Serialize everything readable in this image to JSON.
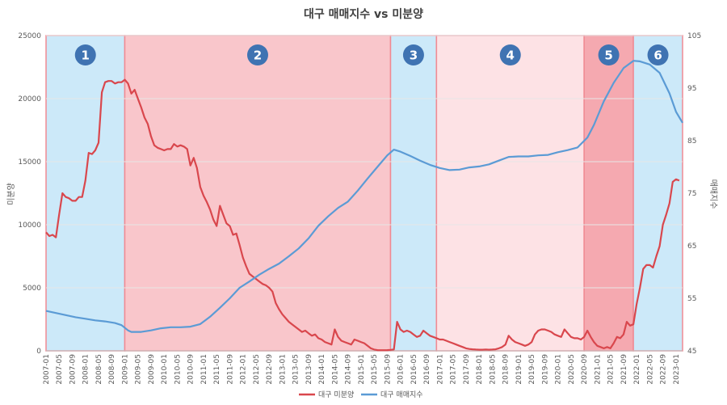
{
  "chart_data": {
    "type": "line",
    "title": "대구 매매지수 vs 미분양",
    "ylabel_left": "미분양",
    "ylabel_right": "매매지수",
    "ylim_left": [
      0,
      25000
    ],
    "ylim_right": [
      45,
      105
    ],
    "yticks_left": [
      "0",
      "5000",
      "10000",
      "15000",
      "20000",
      "25000"
    ],
    "yticks_right": [
      "45",
      "55",
      "65",
      "75",
      "85",
      "95",
      "105"
    ],
    "xlim": [
      "2007-01",
      "2023-03"
    ],
    "xtick_labels": [
      "2007-01",
      "2007-05",
      "2007-09",
      "2008-01",
      "2008-05",
      "2008-09",
      "2009-01",
      "2009-05",
      "2009-09",
      "2010-01",
      "2010-05",
      "2010-09",
      "2011-01",
      "2011-05",
      "2011-09",
      "2012-01",
      "2012-05",
      "2012-09",
      "2013-01",
      "2013-05",
      "2013-09",
      "2014-01",
      "2014-05",
      "2014-09",
      "2015-01",
      "2015-05",
      "2015-09",
      "2016-01",
      "2016-05",
      "2016-09",
      "2017-01",
      "2017-05",
      "2017-09",
      "2018-01",
      "2018-05",
      "2018-09",
      "2019-01",
      "2019-05",
      "2019-09",
      "2020-01",
      "2020-05",
      "2020-09",
      "2021-01",
      "2021-05",
      "2021-09",
      "2022-01",
      "2022-05",
      "2022-09",
      "2023-01"
    ],
    "grid": true,
    "legend": "bottom",
    "phases": [
      {
        "label": "1",
        "start": "2007-01",
        "end": "2009-01",
        "color": "#cce9f9"
      },
      {
        "label": "2",
        "start": "2009-01",
        "end": "2015-10",
        "color": "#f9c6cb"
      },
      {
        "label": "3",
        "start": "2015-10",
        "end": "2016-12",
        "color": "#cce9f9"
      },
      {
        "label": "4",
        "start": "2016-12",
        "end": "2020-09",
        "color": "#fde2e5"
      },
      {
        "label": "5",
        "start": "2020-09",
        "end": "2021-12",
        "color": "#f5a9b0"
      },
      {
        "label": "6",
        "start": "2021-12",
        "end": "2023-03",
        "color": "#cce9f9"
      }
    ],
    "series": [
      {
        "name": "대구 미분양",
        "axis": "left",
        "color": "#d9474d",
        "points": [
          [
            "2007-01",
            9400
          ],
          [
            "2007-02",
            9100
          ],
          [
            "2007-03",
            9200
          ],
          [
            "2007-04",
            9000
          ],
          [
            "2007-05",
            10800
          ],
          [
            "2007-06",
            12500
          ],
          [
            "2007-07",
            12200
          ],
          [
            "2007-08",
            12100
          ],
          [
            "2007-09",
            11900
          ],
          [
            "2007-10",
            11900
          ],
          [
            "2007-11",
            12200
          ],
          [
            "2007-12",
            12200
          ],
          [
            "2008-01",
            13500
          ],
          [
            "2008-02",
            15700
          ],
          [
            "2008-03",
            15600
          ],
          [
            "2008-04",
            15900
          ],
          [
            "2008-05",
            16500
          ],
          [
            "2008-06",
            20500
          ],
          [
            "2008-07",
            21300
          ],
          [
            "2008-08",
            21400
          ],
          [
            "2008-09",
            21400
          ],
          [
            "2008-10",
            21200
          ],
          [
            "2008-11",
            21300
          ],
          [
            "2008-12",
            21300
          ],
          [
            "2009-01",
            21500
          ],
          [
            "2009-02",
            21200
          ],
          [
            "2009-03",
            20400
          ],
          [
            "2009-04",
            20700
          ],
          [
            "2009-05",
            20000
          ],
          [
            "2009-06",
            19300
          ],
          [
            "2009-07",
            18500
          ],
          [
            "2009-08",
            18000
          ],
          [
            "2009-09",
            17000
          ],
          [
            "2009-10",
            16300
          ],
          [
            "2009-11",
            16100
          ],
          [
            "2009-12",
            16000
          ],
          [
            "2010-01",
            15900
          ],
          [
            "2010-02",
            16000
          ],
          [
            "2010-03",
            16000
          ],
          [
            "2010-04",
            16400
          ],
          [
            "2010-05",
            16200
          ],
          [
            "2010-06",
            16300
          ],
          [
            "2010-07",
            16200
          ],
          [
            "2010-08",
            16000
          ],
          [
            "2010-09",
            14700
          ],
          [
            "2010-10",
            15300
          ],
          [
            "2010-11",
            14500
          ],
          [
            "2010-12",
            13000
          ],
          [
            "2011-01",
            12300
          ],
          [
            "2011-02",
            11800
          ],
          [
            "2011-03",
            11200
          ],
          [
            "2011-04",
            10400
          ],
          [
            "2011-05",
            9900
          ],
          [
            "2011-06",
            11500
          ],
          [
            "2011-07",
            10800
          ],
          [
            "2011-08",
            10100
          ],
          [
            "2011-09",
            9900
          ],
          [
            "2011-10",
            9200
          ],
          [
            "2011-11",
            9300
          ],
          [
            "2011-12",
            8400
          ],
          [
            "2012-01",
            7400
          ],
          [
            "2012-02",
            6700
          ],
          [
            "2012-03",
            6100
          ],
          [
            "2012-04",
            5900
          ],
          [
            "2012-05",
            5700
          ],
          [
            "2012-06",
            5500
          ],
          [
            "2012-07",
            5300
          ],
          [
            "2012-08",
            5200
          ],
          [
            "2012-09",
            5000
          ],
          [
            "2012-10",
            4700
          ],
          [
            "2012-11",
            3800
          ],
          [
            "2012-12",
            3300
          ],
          [
            "2013-01",
            2900
          ],
          [
            "2013-02",
            2600
          ],
          [
            "2013-03",
            2300
          ],
          [
            "2013-04",
            2100
          ],
          [
            "2013-05",
            1900
          ],
          [
            "2013-06",
            1700
          ],
          [
            "2013-07",
            1500
          ],
          [
            "2013-08",
            1600
          ],
          [
            "2013-09",
            1400
          ],
          [
            "2013-10",
            1200
          ],
          [
            "2013-11",
            1300
          ],
          [
            "2013-12",
            1000
          ],
          [
            "2014-01",
            900
          ],
          [
            "2014-02",
            700
          ],
          [
            "2014-03",
            600
          ],
          [
            "2014-04",
            500
          ],
          [
            "2014-05",
            1700
          ],
          [
            "2014-06",
            1100
          ],
          [
            "2014-07",
            800
          ],
          [
            "2014-08",
            700
          ],
          [
            "2014-09",
            600
          ],
          [
            "2014-10",
            500
          ],
          [
            "2014-11",
            900
          ],
          [
            "2014-12",
            800
          ],
          [
            "2015-01",
            700
          ],
          [
            "2015-02",
            600
          ],
          [
            "2015-03",
            400
          ],
          [
            "2015-04",
            200
          ],
          [
            "2015-05",
            100
          ],
          [
            "2015-06",
            60
          ],
          [
            "2015-07",
            50
          ],
          [
            "2015-08",
            50
          ],
          [
            "2015-09",
            60
          ],
          [
            "2015-10",
            80
          ],
          [
            "2015-11",
            100
          ],
          [
            "2015-12",
            2300
          ],
          [
            "2016-01",
            1700
          ],
          [
            "2016-02",
            1500
          ],
          [
            "2016-03",
            1600
          ],
          [
            "2016-04",
            1500
          ],
          [
            "2016-05",
            1300
          ],
          [
            "2016-06",
            1100
          ],
          [
            "2016-07",
            1200
          ],
          [
            "2016-08",
            1600
          ],
          [
            "2016-09",
            1400
          ],
          [
            "2016-10",
            1200
          ],
          [
            "2016-11",
            1100
          ],
          [
            "2016-12",
            1000
          ],
          [
            "2017-01",
            900
          ],
          [
            "2017-02",
            900
          ],
          [
            "2017-03",
            800
          ],
          [
            "2017-04",
            700
          ],
          [
            "2017-05",
            600
          ],
          [
            "2017-06",
            500
          ],
          [
            "2017-07",
            400
          ],
          [
            "2017-08",
            300
          ],
          [
            "2017-09",
            200
          ],
          [
            "2017-10",
            150
          ],
          [
            "2017-11",
            120
          ],
          [
            "2017-12",
            100
          ],
          [
            "2018-01",
            90
          ],
          [
            "2018-02",
            90
          ],
          [
            "2018-03",
            100
          ],
          [
            "2018-04",
            90
          ],
          [
            "2018-05",
            100
          ],
          [
            "2018-06",
            120
          ],
          [
            "2018-07",
            200
          ],
          [
            "2018-08",
            300
          ],
          [
            "2018-09",
            500
          ],
          [
            "2018-10",
            1200
          ],
          [
            "2018-11",
            900
          ],
          [
            "2018-12",
            700
          ],
          [
            "2019-01",
            600
          ],
          [
            "2019-02",
            500
          ],
          [
            "2019-03",
            400
          ],
          [
            "2019-04",
            500
          ],
          [
            "2019-05",
            700
          ],
          [
            "2019-06",
            1300
          ],
          [
            "2019-07",
            1600
          ],
          [
            "2019-08",
            1700
          ],
          [
            "2019-09",
            1700
          ],
          [
            "2019-10",
            1600
          ],
          [
            "2019-11",
            1500
          ],
          [
            "2019-12",
            1300
          ],
          [
            "2020-01",
            1200
          ],
          [
            "2020-02",
            1100
          ],
          [
            "2020-03",
            1700
          ],
          [
            "2020-04",
            1400
          ],
          [
            "2020-05",
            1100
          ],
          [
            "2020-06",
            1000
          ],
          [
            "2020-07",
            1000
          ],
          [
            "2020-08",
            900
          ],
          [
            "2020-09",
            1100
          ],
          [
            "2020-10",
            1600
          ],
          [
            "2020-11",
            1100
          ],
          [
            "2020-12",
            700
          ],
          [
            "2021-01",
            400
          ],
          [
            "2021-02",
            300
          ],
          [
            "2021-03",
            200
          ],
          [
            "2021-04",
            300
          ],
          [
            "2021-05",
            200
          ],
          [
            "2021-06",
            600
          ],
          [
            "2021-07",
            1100
          ],
          [
            "2021-08",
            1000
          ],
          [
            "2021-09",
            1300
          ],
          [
            "2021-10",
            2300
          ],
          [
            "2021-11",
            2000
          ],
          [
            "2021-12",
            2100
          ],
          [
            "2022-01",
            3700
          ],
          [
            "2022-02",
            5000
          ],
          [
            "2022-03",
            6500
          ],
          [
            "2022-04",
            6800
          ],
          [
            "2022-05",
            6800
          ],
          [
            "2022-06",
            6600
          ],
          [
            "2022-07",
            7500
          ],
          [
            "2022-08",
            8300
          ],
          [
            "2022-09",
            10000
          ],
          [
            "2022-10",
            10800
          ],
          [
            "2022-11",
            11700
          ],
          [
            "2022-12",
            13400
          ],
          [
            "2023-01",
            13600
          ],
          [
            "2023-02",
            13500
          ]
        ]
      },
      {
        "name": "대구 매매지수",
        "axis": "right",
        "color": "#5b9bd5",
        "points": [
          [
            "2007-01",
            52.6
          ],
          [
            "2007-04",
            52.2
          ],
          [
            "2007-07",
            51.8
          ],
          [
            "2007-10",
            51.4
          ],
          [
            "2008-01",
            51.1
          ],
          [
            "2008-04",
            50.8
          ],
          [
            "2008-07",
            50.6
          ],
          [
            "2008-10",
            50.3
          ],
          [
            "2008-12",
            49.9
          ],
          [
            "2009-02",
            48.9
          ],
          [
            "2009-03",
            48.6
          ],
          [
            "2009-06",
            48.6
          ],
          [
            "2009-09",
            48.9
          ],
          [
            "2009-12",
            49.3
          ],
          [
            "2010-03",
            49.5
          ],
          [
            "2010-06",
            49.5
          ],
          [
            "2010-09",
            49.6
          ],
          [
            "2010-12",
            50.1
          ],
          [
            "2011-03",
            51.5
          ],
          [
            "2011-06",
            53.2
          ],
          [
            "2011-09",
            55.0
          ],
          [
            "2011-12",
            57.0
          ],
          [
            "2012-03",
            58.2
          ],
          [
            "2012-06",
            59.5
          ],
          [
            "2012-09",
            60.6
          ],
          [
            "2012-12",
            61.6
          ],
          [
            "2013-03",
            63.0
          ],
          [
            "2013-06",
            64.5
          ],
          [
            "2013-09",
            66.4
          ],
          [
            "2013-12",
            68.8
          ],
          [
            "2014-03",
            70.6
          ],
          [
            "2014-06",
            72.2
          ],
          [
            "2014-09",
            73.4
          ],
          [
            "2014-12",
            75.5
          ],
          [
            "2015-03",
            77.8
          ],
          [
            "2015-06",
            80.0
          ],
          [
            "2015-09",
            82.2
          ],
          [
            "2015-11",
            83.3
          ],
          [
            "2016-01",
            82.9
          ],
          [
            "2016-04",
            82.1
          ],
          [
            "2016-07",
            81.2
          ],
          [
            "2016-10",
            80.4
          ],
          [
            "2017-01",
            79.8
          ],
          [
            "2017-04",
            79.4
          ],
          [
            "2017-07",
            79.5
          ],
          [
            "2017-10",
            79.9
          ],
          [
            "2018-01",
            80.1
          ],
          [
            "2018-04",
            80.5
          ],
          [
            "2018-07",
            81.2
          ],
          [
            "2018-10",
            81.9
          ],
          [
            "2019-01",
            82.0
          ],
          [
            "2019-04",
            82.0
          ],
          [
            "2019-07",
            82.2
          ],
          [
            "2019-10",
            82.3
          ],
          [
            "2020-01",
            82.8
          ],
          [
            "2020-04",
            83.2
          ],
          [
            "2020-07",
            83.7
          ],
          [
            "2020-10",
            85.6
          ],
          [
            "2020-12",
            88.0
          ],
          [
            "2021-03",
            92.5
          ],
          [
            "2021-06",
            96.0
          ],
          [
            "2021-09",
            98.8
          ],
          [
            "2021-12",
            100.2
          ],
          [
            "2022-02",
            100.1
          ],
          [
            "2022-05",
            99.5
          ],
          [
            "2022-08",
            97.9
          ],
          [
            "2022-11",
            94.0
          ],
          [
            "2023-01",
            90.5
          ],
          [
            "2023-03",
            88.4
          ]
        ]
      }
    ]
  }
}
